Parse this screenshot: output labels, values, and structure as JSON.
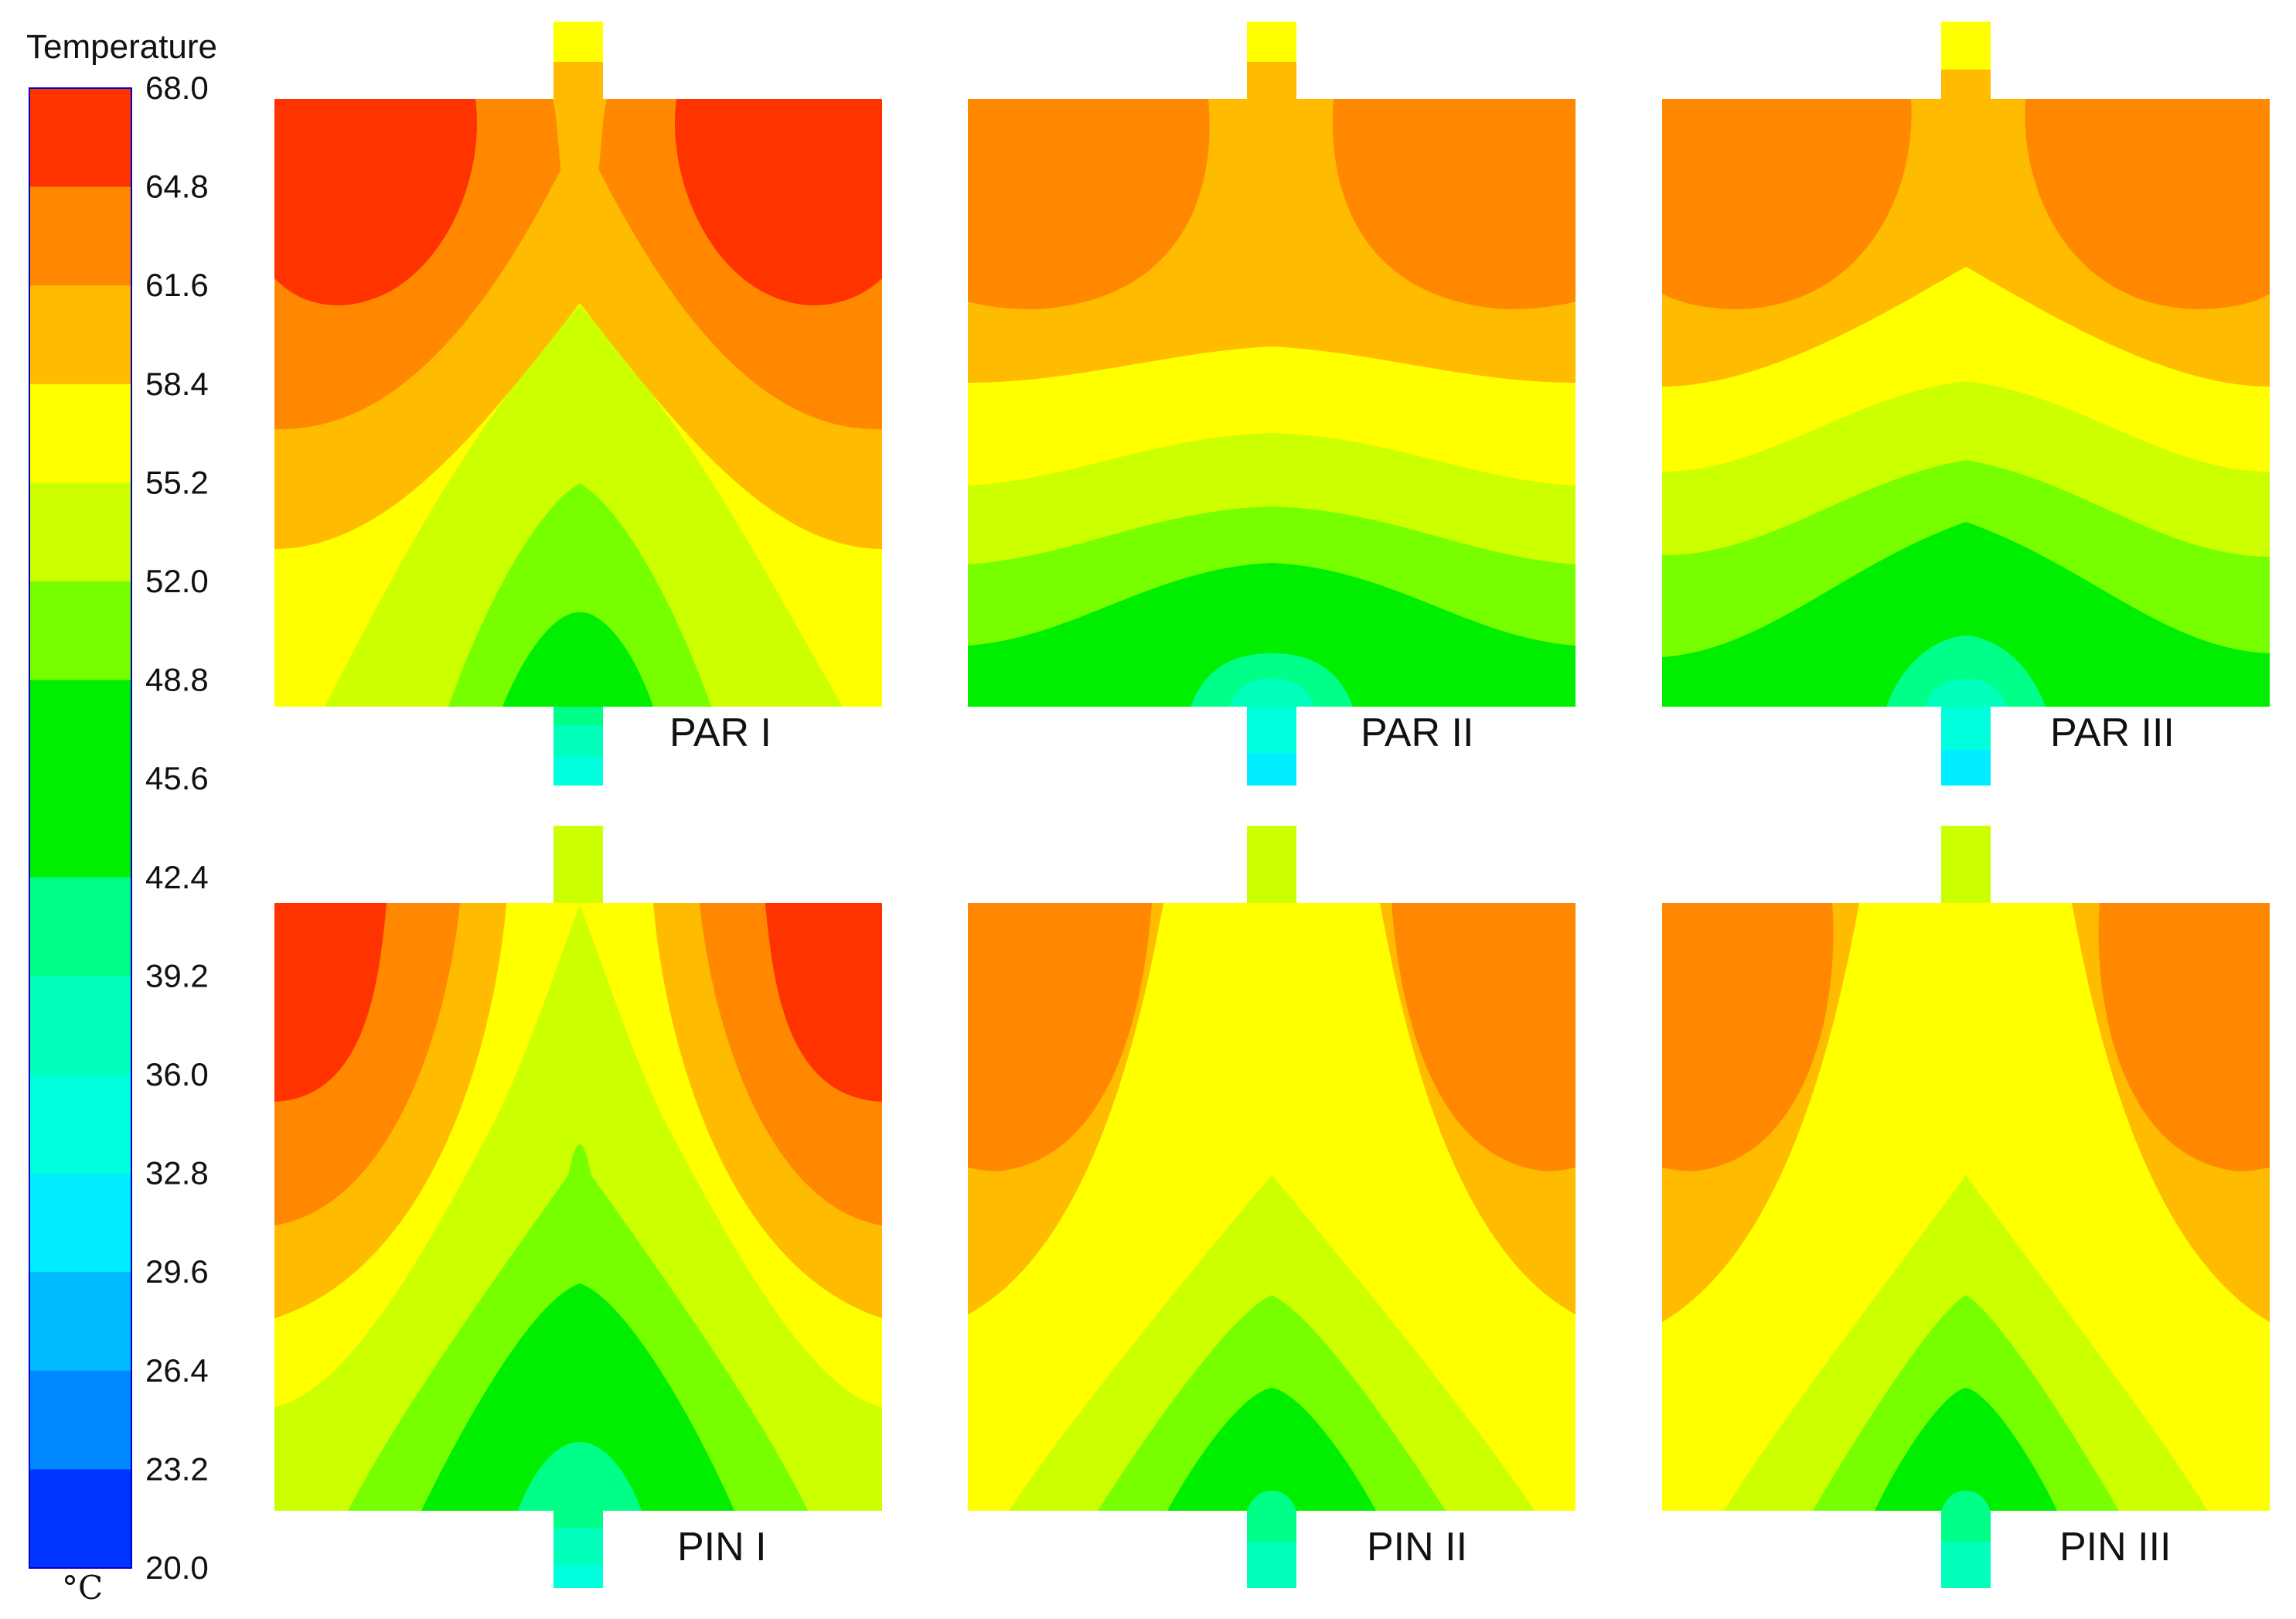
{
  "chart_data": {
    "type": "heatmap",
    "legend": {
      "title": "Temperature",
      "unit": "°C",
      "ticks": [
        "68.0",
        "64.8",
        "61.6",
        "58.4",
        "55.2",
        "52.0",
        "48.8",
        "45.6",
        "42.4",
        "39.2",
        "36.0",
        "32.8",
        "29.6",
        "26.4",
        "23.2",
        "20.0"
      ],
      "min": 20.0,
      "max": 68.0,
      "step": 3.2,
      "band_colors": [
        "#ff3300",
        "#ff8800",
        "#ffbb00",
        "#ffff00",
        "#ccff00",
        "#77ff00",
        "#00ee00",
        "#00ee00",
        "#00ff88",
        "#00ffbb",
        "#00ffdd",
        "#00eeff",
        "#00bbff",
        "#0088ff",
        "#0033ff"
      ]
    },
    "panels": [
      {
        "title": "PAR I"
      },
      {
        "title": "PAR II"
      },
      {
        "title": "PAR III"
      },
      {
        "title": "PIN I"
      },
      {
        "title": "PIN II"
      },
      {
        "title": "PIN III"
      }
    ],
    "grid": "2x3",
    "legend_placement": "left"
  }
}
